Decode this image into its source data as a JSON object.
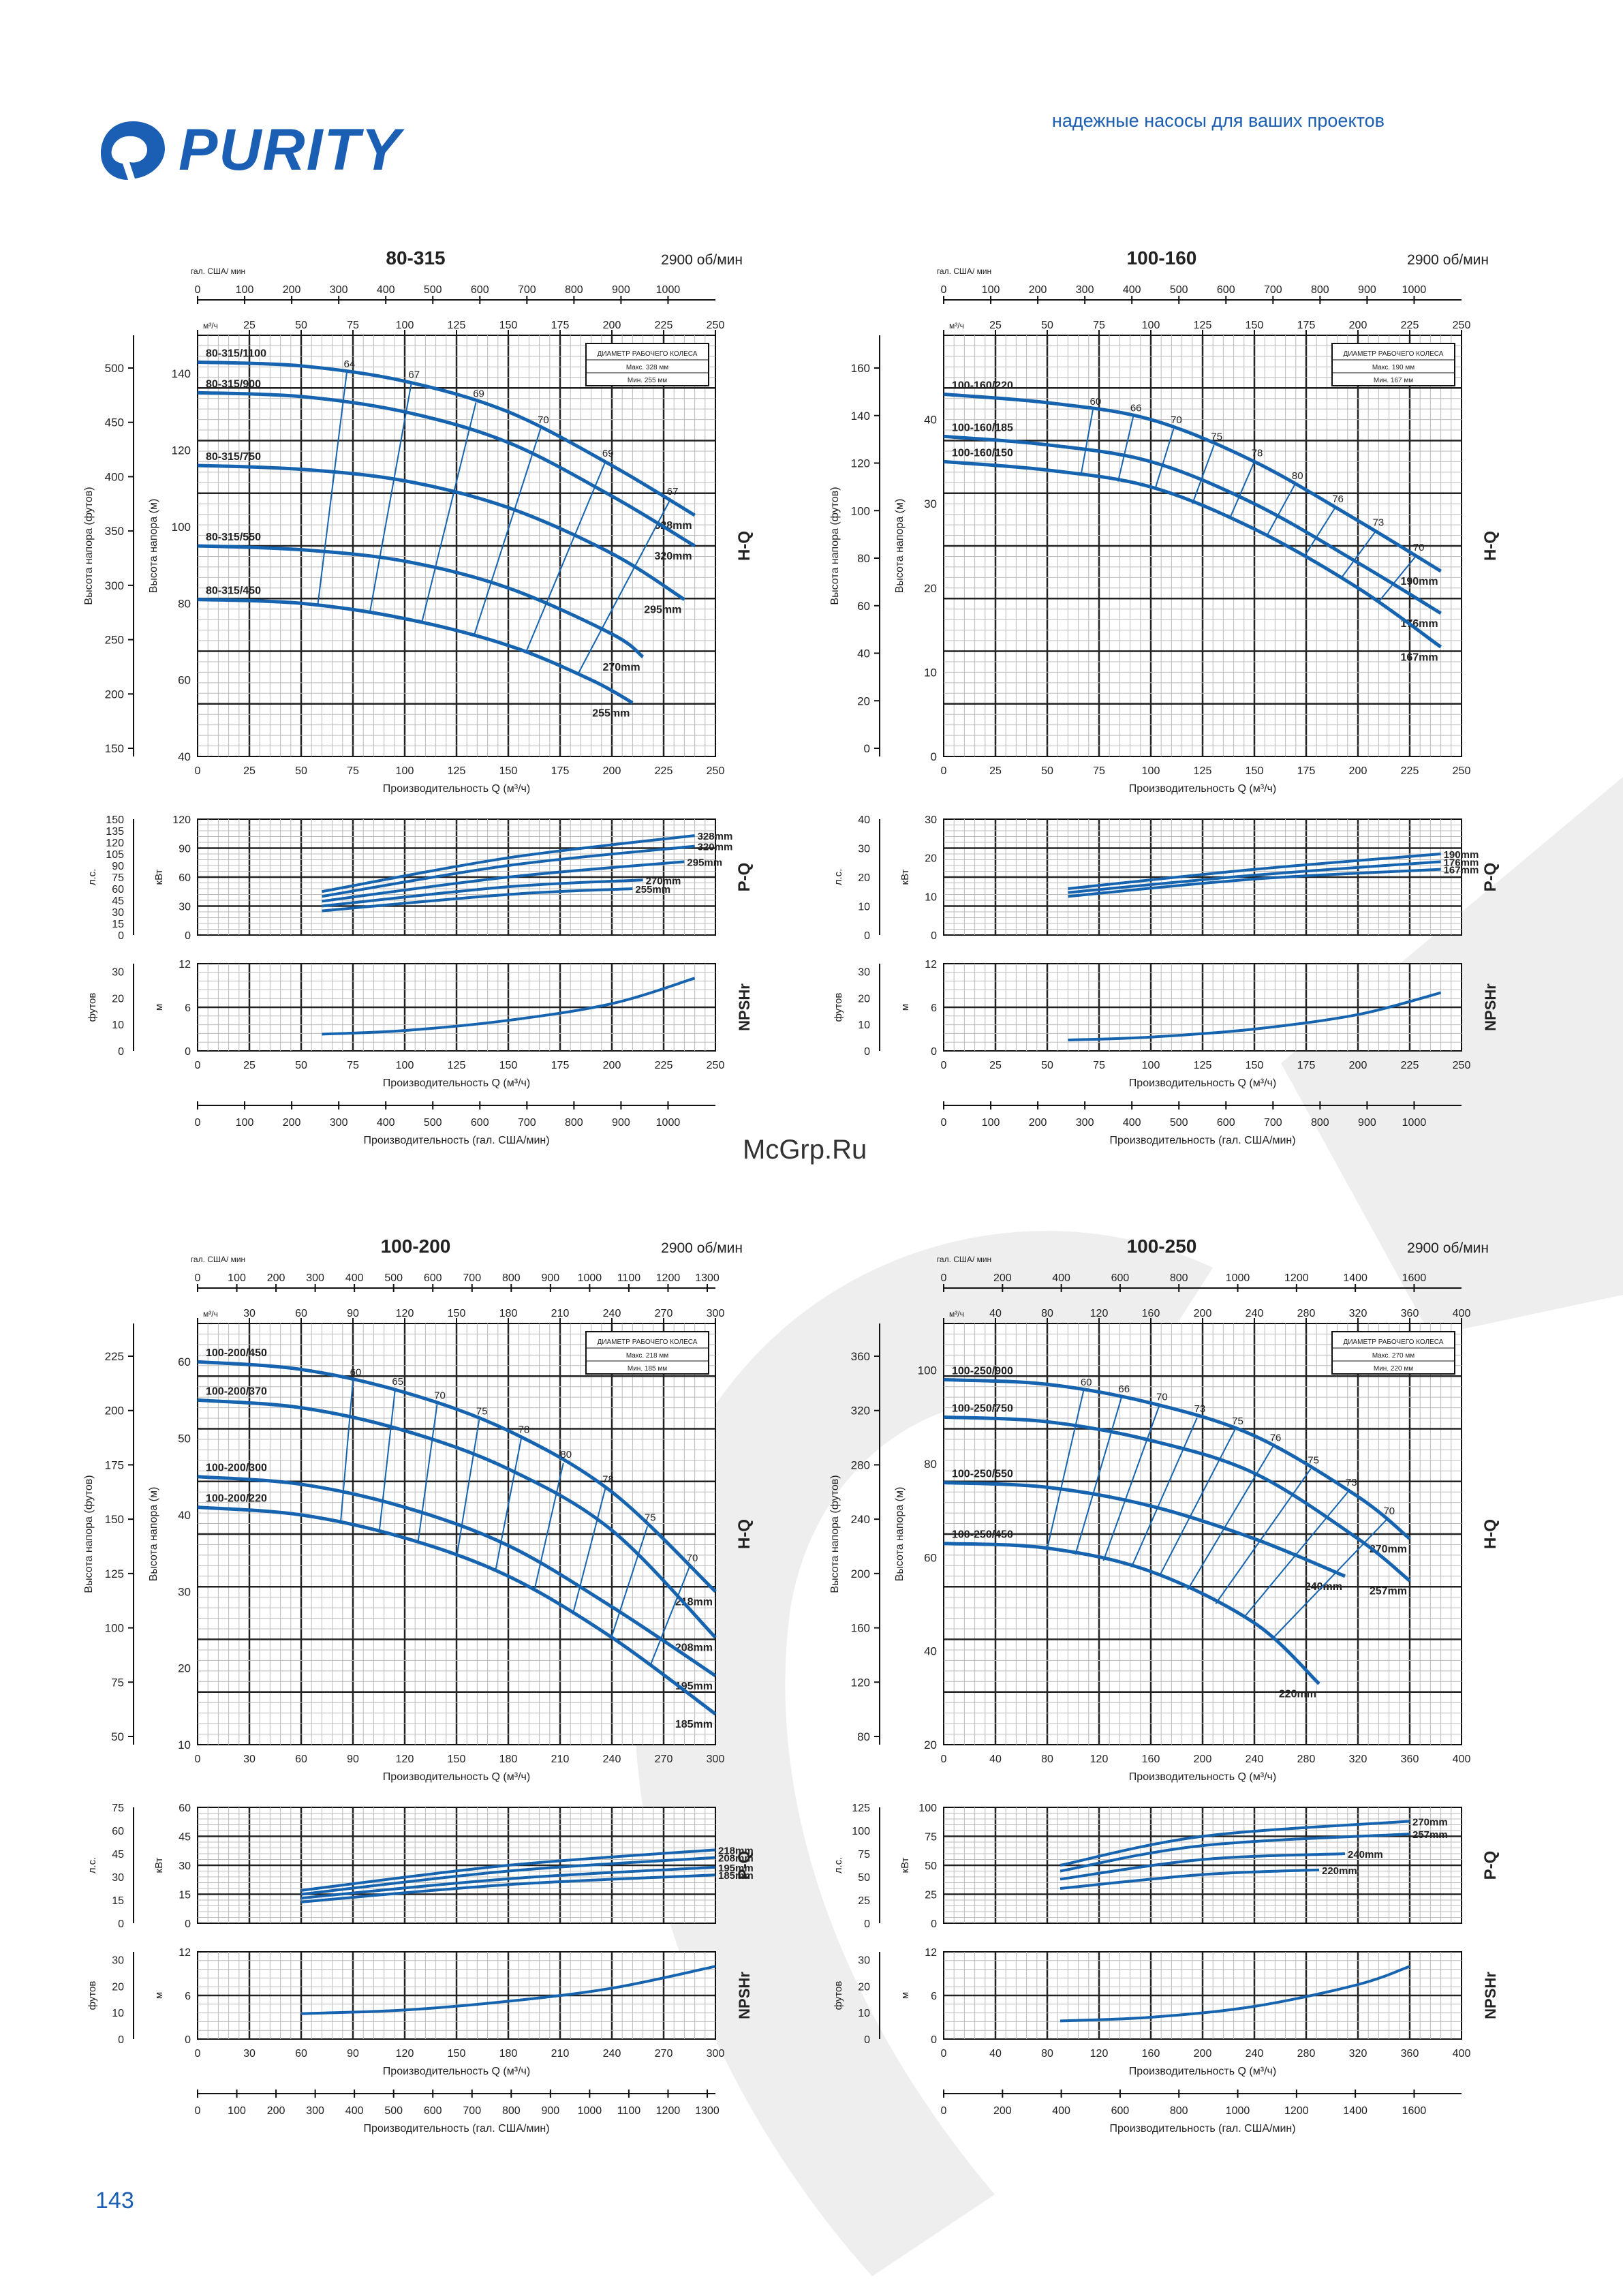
{
  "header": {
    "brand": "PURITY",
    "tagline": "надежные насосы для ваших проектов",
    "page_number": "143",
    "site": "McGrp.Ru"
  },
  "labels": {
    "rpm": "2900 об/мин",
    "gal_top": "гал. США/ мин",
    "m3h": "м³/ч",
    "head_ft": "Высота напора (футов)",
    "head_m": "Высота напора (м)",
    "flow_axis": "Производительность Q (м³/ч)",
    "flow_gal_axis": "Производительность (гал. США/мин)",
    "hp": "л.с.",
    "kw": "кВт",
    "ft": "футов",
    "m": "м",
    "hq": "H-Q",
    "pq": "P-Q",
    "npsh": "NPSHr",
    "impeller_title": "ДИАМЕТР РАБОЧЕГО КОЛЕСА"
  },
  "chart_data": [
    {
      "type": "line",
      "title": "80-315",
      "rpm": "2900 об/мин",
      "impeller": {
        "max": "Макс. 328 мм",
        "min": "Мин. 255 мм"
      },
      "xlim": [
        0,
        250
      ],
      "x_ticks": [
        0,
        25,
        50,
        75,
        100,
        125,
        150,
        175,
        200,
        225,
        250
      ],
      "gal_ticks": [
        0,
        100,
        200,
        300,
        400,
        500,
        600,
        700,
        800,
        900,
        1000
      ],
      "gal_per_m3h": 4.4029,
      "head_m": {
        "ylim": [
          40,
          150
        ],
        "ticks": [
          40,
          60,
          80,
          100,
          120,
          140
        ]
      },
      "head_ft": {
        "ticks": [
          150,
          200,
          250,
          300,
          350,
          400,
          450,
          500
        ]
      },
      "series": [
        {
          "name": "328mm",
          "label": "80-315/1100",
          "x": [
            0,
            50,
            100,
            150,
            200,
            240
          ],
          "y": [
            143,
            142,
            138,
            130,
            116,
            103
          ]
        },
        {
          "name": "320mm",
          "label": "80-315/900",
          "x": [
            0,
            50,
            100,
            150,
            200,
            240
          ],
          "y": [
            135,
            134,
            130,
            122,
            108,
            95
          ]
        },
        {
          "name": "295mm",
          "label": "80-315/750",
          "x": [
            0,
            50,
            100,
            150,
            200,
            235
          ],
          "y": [
            116,
            115,
            112,
            105,
            93,
            81
          ]
        },
        {
          "name": "270mm",
          "label": "80-315/550",
          "x": [
            0,
            50,
            100,
            150,
            200,
            215
          ],
          "y": [
            95,
            94,
            91,
            84,
            72,
            66
          ]
        },
        {
          "name": "255mm",
          "label": "80-315/450",
          "x": [
            0,
            50,
            100,
            150,
            190,
            210
          ],
          "y": [
            81,
            80,
            76,
            69,
            60,
            54
          ]
        }
      ],
      "efficiency_labels": [
        "64",
        "67",
        "69",
        "70",
        "69",
        "67"
      ],
      "power": {
        "kw_ticks": [
          0,
          30,
          60,
          90,
          120
        ],
        "hp_ticks": [
          0,
          15,
          30,
          45,
          60,
          75,
          90,
          105,
          120,
          135,
          150
        ],
        "ylim": [
          0,
          120
        ],
        "series": [
          {
            "name": "328mm",
            "x": [
              60,
              150,
              240
            ],
            "y": [
              45,
              80,
              103
            ]
          },
          {
            "name": "320mm",
            "x": [
              60,
              150,
              240
            ],
            "y": [
              40,
              72,
              92
            ]
          },
          {
            "name": "295mm",
            "x": [
              60,
              150,
              235
            ],
            "y": [
              35,
              60,
              76
            ]
          },
          {
            "name": "270mm",
            "x": [
              60,
              150,
              215
            ],
            "y": [
              30,
              50,
              57
            ]
          },
          {
            "name": "255mm",
            "x": [
              60,
              150,
              210
            ],
            "y": [
              25,
              42,
              48
            ]
          }
        ]
      },
      "npsh": {
        "ylim": [
          0,
          12
        ],
        "m_ticks": [
          0,
          6,
          12
        ],
        "ft_ticks": [
          0,
          10,
          20,
          30
        ],
        "x": [
          60,
          100,
          150,
          200,
          240
        ],
        "y": [
          2.3,
          2.8,
          4.2,
          6.5,
          10
        ]
      }
    },
    {
      "type": "line",
      "title": "100-160",
      "rpm": "2900 об/мин",
      "impeller": {
        "max": "Макс. 190 мм",
        "min": "Мин. 167 мм"
      },
      "xlim": [
        0,
        250
      ],
      "x_ticks": [
        0,
        25,
        50,
        75,
        100,
        125,
        150,
        175,
        200,
        225,
        250
      ],
      "gal_ticks": [
        0,
        100,
        200,
        300,
        400,
        500,
        600,
        700,
        800,
        900,
        1000
      ],
      "gal_per_m3h": 4.4029,
      "head_m": {
        "ylim": [
          0,
          50
        ],
        "ticks": [
          0,
          10,
          20,
          30,
          40
        ]
      },
      "head_ft": {
        "ticks": [
          0,
          20,
          40,
          60,
          80,
          100,
          120,
          140,
          160
        ]
      },
      "series": [
        {
          "name": "190mm",
          "label": "100-160/220",
          "x": [
            0,
            50,
            100,
            150,
            200,
            240
          ],
          "y": [
            43,
            42,
            40,
            35,
            28,
            22
          ]
        },
        {
          "name": "176mm",
          "label": "100-160/185",
          "x": [
            0,
            50,
            100,
            150,
            200,
            240
          ],
          "y": [
            38,
            37,
            35,
            30,
            23,
            17
          ]
        },
        {
          "name": "167mm",
          "label": "100-160/150",
          "x": [
            0,
            50,
            100,
            150,
            200,
            240
          ],
          "y": [
            35,
            34,
            32,
            27,
            20,
            13
          ]
        }
      ],
      "efficiency_labels": [
        "60",
        "66",
        "70",
        "75",
        "78",
        "80",
        "76",
        "73",
        "70"
      ],
      "power": {
        "kw_ticks": [
          0,
          10,
          20,
          30
        ],
        "hp_ticks": [
          0,
          10,
          20,
          30,
          40
        ],
        "ylim": [
          0,
          30
        ],
        "series": [
          {
            "name": "190mm",
            "x": [
              60,
              150,
              240
            ],
            "y": [
              12,
              17,
              21
            ]
          },
          {
            "name": "176mm",
            "x": [
              60,
              150,
              240
            ],
            "y": [
              11,
              15.5,
              19
            ]
          },
          {
            "name": "167mm",
            "x": [
              60,
              150,
              240
            ],
            "y": [
              10,
              14.5,
              17
            ]
          }
        ]
      },
      "npsh": {
        "ylim": [
          0,
          12
        ],
        "m_ticks": [
          0,
          6,
          12
        ],
        "ft_ticks": [
          0,
          10,
          20,
          30
        ],
        "x": [
          60,
          100,
          150,
          200,
          240
        ],
        "y": [
          1.5,
          1.9,
          3,
          5,
          8
        ]
      }
    },
    {
      "type": "line",
      "title": "100-200",
      "rpm": "2900 об/мин",
      "impeller": {
        "max": "Макс. 218 мм",
        "min": "Мин. 185 мм"
      },
      "xlim": [
        0,
        300
      ],
      "x_ticks": [
        0,
        30,
        60,
        90,
        120,
        150,
        180,
        210,
        240,
        270,
        300
      ],
      "gal_ticks": [
        0,
        100,
        200,
        300,
        400,
        500,
        600,
        700,
        800,
        900,
        1000,
        1100,
        1200,
        1300
      ],
      "gal_per_m3h": 4.4029,
      "head_m": {
        "ylim": [
          10,
          65
        ],
        "ticks": [
          10,
          20,
          30,
          40,
          50,
          60
        ]
      },
      "head_ft": {
        "ticks": [
          50,
          75,
          100,
          125,
          150,
          175,
          200,
          225
        ]
      },
      "series": [
        {
          "name": "218mm",
          "label": "100-200/450",
          "x": [
            0,
            60,
            120,
            180,
            240,
            300
          ],
          "y": [
            60,
            59,
            56,
            51,
            43,
            30
          ]
        },
        {
          "name": "208mm",
          "label": "100-200/370",
          "x": [
            0,
            60,
            120,
            180,
            240,
            300
          ],
          "y": [
            55,
            54,
            51,
            46,
            38,
            24
          ]
        },
        {
          "name": "195mm",
          "label": "100-200/300",
          "x": [
            0,
            60,
            120,
            180,
            240,
            300
          ],
          "y": [
            45,
            44,
            41,
            36,
            28,
            19
          ]
        },
        {
          "name": "185mm",
          "label": "100-200/220",
          "x": [
            0,
            60,
            120,
            180,
            240,
            300
          ],
          "y": [
            41,
            40,
            37,
            32,
            24,
            14
          ]
        }
      ],
      "efficiency_labels": [
        "60",
        "65",
        "70",
        "75",
        "78",
        "80",
        "78",
        "75",
        "70"
      ],
      "power": {
        "kw_ticks": [
          0,
          15,
          30,
          45,
          60
        ],
        "hp_ticks": [
          0,
          15,
          30,
          45,
          60,
          75
        ],
        "ylim": [
          0,
          60
        ],
        "series": [
          {
            "name": "218mm",
            "x": [
              60,
              180,
              300
            ],
            "y": [
              17,
              30,
              38
            ]
          },
          {
            "name": "208mm",
            "x": [
              60,
              180,
              300
            ],
            "y": [
              15,
              27,
              34
            ]
          },
          {
            "name": "195mm",
            "x": [
              60,
              180,
              300
            ],
            "y": [
              13,
              23,
              29
            ]
          },
          {
            "name": "185mm",
            "x": [
              60,
              180,
              300
            ],
            "y": [
              11,
              20,
              25
            ]
          }
        ]
      },
      "npsh": {
        "ylim": [
          0,
          12
        ],
        "m_ticks": [
          0,
          6,
          12
        ],
        "ft_ticks": [
          0,
          10,
          20,
          30
        ],
        "x": [
          60,
          120,
          180,
          240,
          300
        ],
        "y": [
          3.5,
          4,
          5.2,
          7,
          10
        ]
      }
    },
    {
      "type": "line",
      "title": "100-250",
      "rpm": "2900 об/мин",
      "impeller": {
        "max": "Макс. 270 мм",
        "min": "Мин. 220 мм"
      },
      "xlim": [
        0,
        400
      ],
      "x_ticks": [
        0,
        40,
        80,
        120,
        160,
        200,
        240,
        280,
        320,
        360,
        400
      ],
      "gal_ticks": [
        0,
        200,
        400,
        600,
        800,
        1000,
        1200,
        1400,
        1600
      ],
      "gal_per_m3h": 4.4029,
      "head_m": {
        "ylim": [
          20,
          110
        ],
        "ticks": [
          20,
          40,
          60,
          80,
          100
        ]
      },
      "head_ft": {
        "ticks": [
          80,
          120,
          160,
          200,
          240,
          280,
          320,
          360
        ]
      },
      "series": [
        {
          "name": "270mm",
          "label": "100-250/900",
          "x": [
            0,
            80,
            160,
            240,
            320,
            360
          ],
          "y": [
            98,
            97,
            93,
            86,
            73,
            64
          ]
        },
        {
          "name": "257mm",
          "label": "100-250/750",
          "x": [
            0,
            80,
            160,
            240,
            320,
            360
          ],
          "y": [
            90,
            89,
            85,
            78,
            64,
            55
          ]
        },
        {
          "name": "240mm",
          "label": "100-250/550",
          "x": [
            0,
            80,
            160,
            240,
            310
          ],
          "y": [
            76,
            75,
            71,
            64,
            56
          ]
        },
        {
          "name": "220mm",
          "label": "100-250/450",
          "x": [
            0,
            80,
            160,
            240,
            290
          ],
          "y": [
            63,
            62,
            57,
            46,
            33
          ]
        }
      ],
      "efficiency_labels": [
        "60",
        "66",
        "70",
        "73",
        "75",
        "76",
        "75",
        "73",
        "70"
      ],
      "power": {
        "kw_ticks": [
          0,
          25,
          50,
          75,
          100
        ],
        "hp_ticks": [
          0,
          25,
          50,
          75,
          100,
          125
        ],
        "ylim": [
          0,
          100
        ],
        "series": [
          {
            "name": "270mm",
            "x": [
              90,
              200,
              360
            ],
            "y": [
              50,
              75,
              88
            ]
          },
          {
            "name": "257mm",
            "x": [
              90,
              200,
              360
            ],
            "y": [
              45,
              67,
              77
            ]
          },
          {
            "name": "240mm",
            "x": [
              90,
              200,
              310
            ],
            "y": [
              38,
              55,
              60
            ]
          },
          {
            "name": "220mm",
            "x": [
              90,
              200,
              290
            ],
            "y": [
              30,
              42,
              46
            ]
          }
        ]
      },
      "npsh": {
        "ylim": [
          0,
          12
        ],
        "m_ticks": [
          0,
          6,
          12
        ],
        "ft_ticks": [
          0,
          10,
          20,
          30
        ],
        "x": [
          90,
          160,
          240,
          320,
          360
        ],
        "y": [
          2.5,
          3,
          4.5,
          7.5,
          10
        ]
      }
    }
  ]
}
